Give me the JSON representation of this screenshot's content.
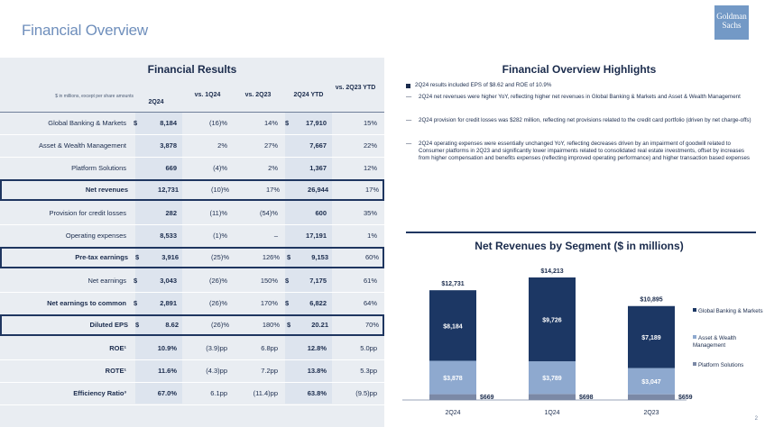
{
  "header": {
    "title": "Financial Overview",
    "logo_text": "Goldman Sachs"
  },
  "financial_results": {
    "title": "Financial Results",
    "units_note": "$ in millions, except per share amounts",
    "columns": [
      "2Q24",
      "vs. 1Q24",
      "vs. 2Q23",
      "2Q24 YTD",
      "vs. 2Q23 YTD"
    ],
    "rows": [
      {
        "label": "Global Banking & Markets",
        "cur": "$",
        "v": "8,184",
        "q1": "(16)%",
        "q2": "14%",
        "ycur": "$",
        "ytd": "17,910",
        "yc": "15%",
        "bold": false,
        "boxed": false
      },
      {
        "label": "Asset & Wealth Management",
        "cur": "",
        "v": "3,878",
        "q1": "2%",
        "q2": "27%",
        "ycur": "",
        "ytd": "7,667",
        "yc": "22%",
        "bold": false,
        "boxed": false
      },
      {
        "label": "Platform Solutions",
        "cur": "",
        "v": "669",
        "q1": "(4)%",
        "q2": "2%",
        "ycur": "",
        "ytd": "1,367",
        "yc": "12%",
        "bold": false,
        "boxed": false
      },
      {
        "label": "Net revenues",
        "cur": "",
        "v": "12,731",
        "q1": "(10)%",
        "q2": "17%",
        "ycur": "",
        "ytd": "26,944",
        "yc": "17%",
        "bold": true,
        "boxed": true
      },
      {
        "label": "Provision for credit losses",
        "cur": "",
        "v": "282",
        "q1": "(11)%",
        "q2": "(54)%",
        "ycur": "",
        "ytd": "600",
        "yc": "35%",
        "bold": false,
        "boxed": false
      },
      {
        "label": "Operating expenses",
        "cur": "",
        "v": "8,533",
        "q1": "(1)%",
        "q2": "–",
        "ycur": "",
        "ytd": "17,191",
        "yc": "1%",
        "bold": false,
        "boxed": false
      },
      {
        "label": "Pre-tax earnings",
        "cur": "$",
        "v": "3,916",
        "q1": "(25)%",
        "q2": "126%",
        "ycur": "$",
        "ytd": "9,153",
        "yc": "60%",
        "bold": true,
        "boxed": true
      },
      {
        "label": "Net earnings",
        "cur": "$",
        "v": "3,043",
        "q1": "(26)%",
        "q2": "150%",
        "ycur": "$",
        "ytd": "7,175",
        "yc": "61%",
        "bold": false,
        "boxed": false
      },
      {
        "label": "Net earnings to common",
        "cur": "$",
        "v": "2,891",
        "q1": "(26)%",
        "q2": "170%",
        "ycur": "$",
        "ytd": "6,822",
        "yc": "64%",
        "bold": true,
        "boxed": false
      },
      {
        "label": "Diluted EPS",
        "cur": "$",
        "v": "8.62",
        "q1": "(26)%",
        "q2": "180%",
        "ycur": "$",
        "ytd": "20.21",
        "yc": "70%",
        "bold": true,
        "boxed": true
      },
      {
        "label": "ROE¹",
        "cur": "",
        "v": "10.9%",
        "q1": "(3.9)pp",
        "q2": "6.8pp",
        "ycur": "",
        "ytd": "12.8%",
        "yc": "5.0pp",
        "bold": true,
        "boxed": false
      },
      {
        "label": "ROTE¹",
        "cur": "",
        "v": "11.6%",
        "q1": "(4.3)pp",
        "q2": "7.2pp",
        "ycur": "",
        "ytd": "13.8%",
        "yc": "5.3pp",
        "bold": true,
        "boxed": false
      },
      {
        "label": "Efficiency Ratio³",
        "cur": "",
        "v": "67.0%",
        "q1": "6.1pp",
        "q2": "(11.4)pp",
        "ycur": "",
        "ytd": "63.8%",
        "yc": "(9.5)pp",
        "bold": true,
        "boxed": false
      }
    ]
  },
  "highlights": {
    "title": "Financial Overview Highlights",
    "bullet": "2Q24 results included EPS of $8.62 and ROE of 10.9%",
    "subs": [
      "2Q24 net revenues were higher YoY, reflecting higher net revenues in Global Banking & Markets and Asset & Wealth Management",
      "2Q24 provision for credit losses was $282 million, reflecting net provisions related to the credit card portfolio (driven by net charge-offs)",
      "2Q24 operating expenses were essentially unchanged YoY, reflecting decreases driven by an impairment of goodwill related to Consumer platforms in 2Q23 and significantly lower impairments related to consolidated real estate investments, offset by increases from higher compensation and benefits expenses (reflecting improved operating performance) and higher transaction based expenses"
    ]
  },
  "chart_data": {
    "type": "bar",
    "stacked": true,
    "title": "Net Revenues by Segment ($ in millions)",
    "categories": [
      "2Q24",
      "1Q24",
      "2Q23"
    ],
    "totals": [
      "$12,731",
      "$14,213",
      "$10,895"
    ],
    "series": [
      {
        "name": "Platform Solutions",
        "values": [
          669,
          698,
          659
        ],
        "labels": [
          "$669",
          "$698",
          "$659"
        ],
        "color": "#7b89a6"
      },
      {
        "name": "Asset & Wealth Management",
        "values": [
          3878,
          3789,
          3047
        ],
        "labels": [
          "$3,878",
          "$3,789",
          "$3,047"
        ],
        "color": "#8ea9cf"
      },
      {
        "name": "Global Banking & Markets",
        "values": [
          8184,
          9726,
          7189
        ],
        "labels": [
          "$8,184",
          "$9,726",
          "$7,189"
        ],
        "color": "#1c3764"
      }
    ],
    "legend": [
      "Global Banking & Markets",
      "Asset & Wealth Management",
      "Platform Solutions"
    ],
    "legend_position": "right"
  },
  "page_number": "2"
}
